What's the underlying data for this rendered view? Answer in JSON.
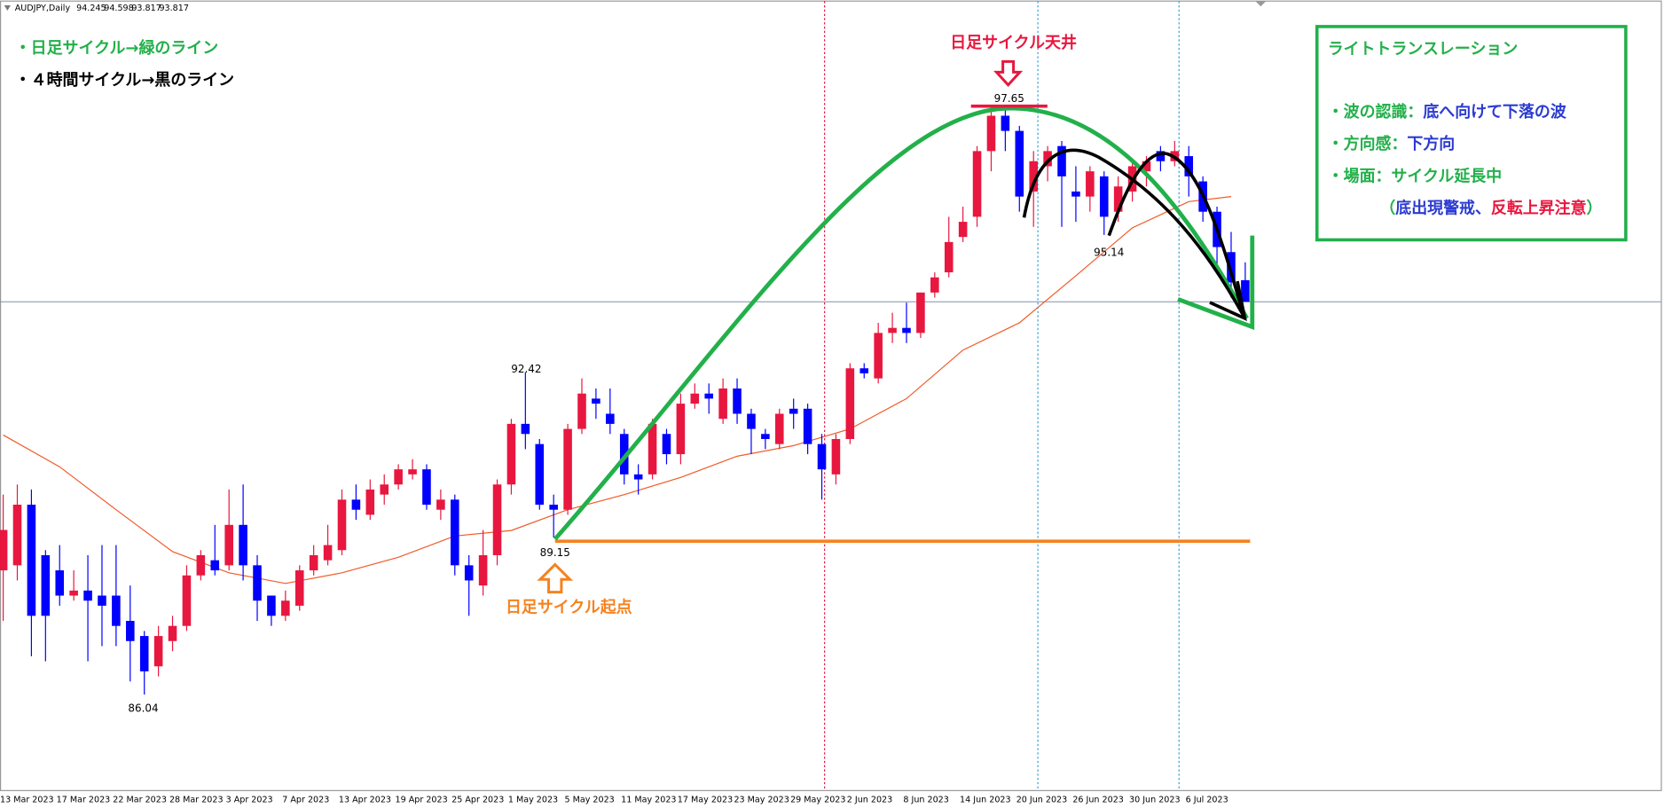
{
  "header": {
    "symbol": "AUDJPY,Daily"
  },
  "chart_data": {
    "type": "candlestick",
    "categories": [
      "13 Mar 2023",
      null,
      null,
      null,
      "17 Mar 2023",
      null,
      null,
      null,
      "22 Mar 2023",
      null,
      null,
      null,
      "28 Mar 2023",
      null,
      null,
      null,
      "3 Apr 2023",
      null,
      null,
      null,
      "7 Apr 2023",
      null,
      null,
      null,
      "13 Apr 2023",
      null,
      null,
      null,
      "19 Apr 2023",
      null,
      null,
      null,
      "25 Apr 2023",
      null,
      null,
      null,
      "1 May 2023",
      null,
      null,
      null,
      "5 May 2023",
      null,
      null,
      null,
      "11 May 2023",
      null,
      null,
      null,
      "17 May 2023",
      null,
      null,
      null,
      "23 May 2023",
      null,
      null,
      null,
      "29 May 2023",
      null,
      null,
      null,
      "2 Jun 2023",
      null,
      null,
      null,
      "8 Jun 2023",
      null,
      null,
      null,
      "14 Jun 2023",
      null,
      null,
      null,
      "20 Jun 2023",
      null,
      null,
      null,
      "26 Jun 2023",
      null,
      null,
      null,
      "30 Jun 2023",
      null,
      null,
      null,
      "6 Jul 2023",
      null,
      null,
      null,
      null
    ],
    "open": [
      88.5,
      88.6,
      89.8,
      88.8,
      88.5,
      88.0,
      88.1,
      88.0,
      88.0,
      87.5,
      87.2,
      86.6,
      87.1,
      87.4,
      88.4,
      88.7,
      88.6,
      89.4,
      88.6,
      88.0,
      87.6,
      87.8,
      88.5,
      88.7,
      88.9,
      89.9,
      89.6,
      90.0,
      90.2,
      90.4,
      90.5,
      89.7,
      89.9,
      88.6,
      88.2,
      88.8,
      90.2,
      91.4,
      91.0,
      89.8,
      89.7,
      91.3,
      91.9,
      91.6,
      91.2,
      90.4,
      90.4,
      91.2,
      90.8,
      91.8,
      92.0,
      91.5,
      92.1,
      91.6,
      91.2,
      91.0,
      91.7,
      91.7,
      91.0,
      90.4,
      91.1,
      92.5,
      92.3,
      93.2,
      93.3,
      93.2,
      94.0,
      94.4,
      95.1,
      95.5,
      96.8,
      97.5,
      97.2,
      96.0,
      96.5,
      96.9,
      96.0,
      95.9,
      96.3,
      95.6,
      96.0,
      96.4,
      96.8,
      96.6,
      96.7,
      96.2,
      95.6,
      94.8,
      94.245
    ],
    "high": [
      90.0,
      90.2,
      90.1,
      88.9,
      89.0,
      88.5,
      88.8,
      89.0,
      89.0,
      88.2,
      87.3,
      87.4,
      87.6,
      88.6,
      88.9,
      89.4,
      90.1,
      90.2,
      88.8,
      88.0,
      88.1,
      88.6,
      89.0,
      89.4,
      90.1,
      90.2,
      90.3,
      90.4,
      90.6,
      90.7,
      90.6,
      90.1,
      90.0,
      88.8,
      89.3,
      90.3,
      91.5,
      92.42,
      91.1,
      90.0,
      91.4,
      92.3,
      92.1,
      92.1,
      91.3,
      90.6,
      91.5,
      91.3,
      92.0,
      92.2,
      92.2,
      92.3,
      92.3,
      91.7,
      91.3,
      91.7,
      91.9,
      91.8,
      91.2,
      91.2,
      92.6,
      92.6,
      93.4,
      93.6,
      93.8,
      94.0,
      94.4,
      95.5,
      95.7,
      96.9,
      97.6,
      97.65,
      97.3,
      96.8,
      96.9,
      97.0,
      96.5,
      96.5,
      96.4,
      96.3,
      96.6,
      96.7,
      96.9,
      97.0,
      96.9,
      96.3,
      95.7,
      95.2,
      94.598
    ],
    "low": [
      87.5,
      88.3,
      86.8,
      86.7,
      87.8,
      87.9,
      86.7,
      87.0,
      87.0,
      86.3,
      86.04,
      86.4,
      86.9,
      87.3,
      88.3,
      88.4,
      88.5,
      88.3,
      87.5,
      87.4,
      87.5,
      87.7,
      88.4,
      88.6,
      88.8,
      89.5,
      89.5,
      89.8,
      90.1,
      90.3,
      89.7,
      89.5,
      88.4,
      87.6,
      88.0,
      88.6,
      90.0,
      90.9,
      89.7,
      89.15,
      89.6,
      91.2,
      91.5,
      91.2,
      90.2,
      90.0,
      90.3,
      90.6,
      90.6,
      91.7,
      91.6,
      91.4,
      91.4,
      90.8,
      90.9,
      90.9,
      91.3,
      90.8,
      89.9,
      90.2,
      91.0,
      92.3,
      92.2,
      93.0,
      93.0,
      93.1,
      93.9,
      94.3,
      95.0,
      95.3,
      96.4,
      96.8,
      95.6,
      95.3,
      96.2,
      95.3,
      95.4,
      95.6,
      95.14,
      95.4,
      95.8,
      96.1,
      96.4,
      96.5,
      95.9,
      95.4,
      94.5,
      93.9,
      93.817
    ],
    "close": [
      89.3,
      89.8,
      87.6,
      87.6,
      88.0,
      88.1,
      87.9,
      87.8,
      87.4,
      87.1,
      86.5,
      87.2,
      87.4,
      88.4,
      88.8,
      88.5,
      89.4,
      88.6,
      87.9,
      87.6,
      87.9,
      88.5,
      88.8,
      89.0,
      89.9,
      89.7,
      90.1,
      90.2,
      90.5,
      90.5,
      89.8,
      89.9,
      88.6,
      88.3,
      88.8,
      90.2,
      91.4,
      91.2,
      89.8,
      89.7,
      91.3,
      92.0,
      91.8,
      91.4,
      90.4,
      90.3,
      91.4,
      90.8,
      91.8,
      92.0,
      91.9,
      92.1,
      91.6,
      91.3,
      91.1,
      91.6,
      91.6,
      91.0,
      90.5,
      91.1,
      92.5,
      92.4,
      93.2,
      93.3,
      93.2,
      94.0,
      94.3,
      95.0,
      95.4,
      96.8,
      97.5,
      97.2,
      95.9,
      96.6,
      96.8,
      96.3,
      95.9,
      96.4,
      95.5,
      96.1,
      96.5,
      96.6,
      96.6,
      96.8,
      96.3,
      95.6,
      94.9,
      94.2,
      93.817
    ],
    "up_color": "#e8173f",
    "down_color": "#0000ff",
    "ylim": [
      84.14,
      99.77
    ],
    "ma": {
      "color": "#f05a28",
      "x": [
        0,
        4,
        8,
        12,
        16,
        20,
        24,
        28,
        32,
        36,
        40,
        44,
        48,
        52,
        56,
        60,
        64,
        68,
        72,
        76,
        80,
        84,
        87
      ],
      "values": [
        91.18,
        90.55,
        89.7,
        88.87,
        88.45,
        88.24,
        88.45,
        88.76,
        89.18,
        89.29,
        89.7,
        90.0,
        90.34,
        90.76,
        90.97,
        91.3,
        91.9,
        92.86,
        93.4,
        94.33,
        95.28,
        95.8,
        95.9
      ]
    }
  },
  "annotations": {
    "legend_lines": [
      {
        "text": "・日足サイクル→緑のライン",
        "color": "#22b04a"
      },
      {
        "text": "・４時間サイクル→黒のライン",
        "color": "#000000"
      }
    ],
    "cycle_top": "日足サイクル天井",
    "cycle_start": "日足サイクル起点"
  },
  "info_box": {
    "title": "ライトトランスレーション",
    "rows": [
      {
        "parts": [
          {
            "text": "・波の認識：",
            "color": "#22b04a"
          },
          {
            "text": "底へ向けて下落の波",
            "color": "#2b3bd1"
          }
        ]
      },
      {
        "parts": [
          {
            "text": "・方向感：",
            "color": "#22b04a"
          },
          {
            "text": "下方向",
            "color": "#2b3bd1"
          }
        ]
      },
      {
        "parts": [
          {
            "text": "・場面：",
            "color": "#22b04a"
          },
          {
            "text": "サイクル延長中",
            "color": "#22b04a"
          }
        ]
      },
      {
        "parts": [
          {
            "text": "（",
            "color": "#22b04a"
          },
          {
            "text": "底出現警戒、",
            "color": "#2b3bd1"
          },
          {
            "text": "反転上昇注意",
            "color": "#e8173f"
          },
          {
            "text": "）",
            "color": "#22b04a"
          }
        ]
      }
    ]
  }
}
